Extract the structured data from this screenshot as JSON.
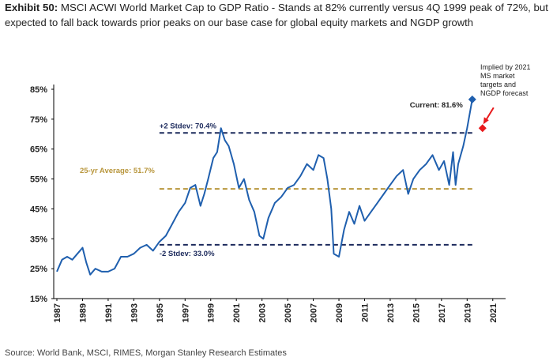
{
  "chart_data": {
    "type": "line",
    "exhibit": "Exhibit 50:",
    "title": [
      "MSCI ACWI World Market Cap to GDP Ratio - Stands at 82% currently versus 4Q 1999 peak of 72%, but",
      "expected to fall back towards prior peaks on our base case for global equity markets and NGDP growth"
    ],
    "source": "Source: World Bank, MSCI, RIMES, Morgan Stanley Research Estimates",
    "xlim": [
      1987,
      2022
    ],
    "ylim": [
      15,
      85
    ],
    "xticks": [
      1987,
      1989,
      1991,
      1993,
      1995,
      1997,
      1999,
      2001,
      2003,
      2005,
      2007,
      2009,
      2011,
      2013,
      2015,
      2017,
      2019,
      2021
    ],
    "yticks": [
      {
        "value": 15,
        "label": "15%"
      },
      {
        "value": 25,
        "label": "25%"
      },
      {
        "value": 35,
        "label": "35%"
      },
      {
        "value": 45,
        "label": "45%"
      },
      {
        "value": 55,
        "label": "55%"
      },
      {
        "value": 65,
        "label": "65%"
      },
      {
        "value": 75,
        "label": "75%"
      },
      {
        "value": 85,
        "label": "85%"
      }
    ],
    "series": [
      {
        "color": "#1f5fae",
        "x": [
          1987,
          1987.4,
          1987.8,
          1988.2,
          1988.6,
          1989.0,
          1989.3,
          1989.6,
          1990.0,
          1990.5,
          1991.0,
          1991.5,
          1992.0,
          1992.5,
          1993.0,
          1993.5,
          1994.0,
          1994.5,
          1995.0,
          1995.5,
          1996.0,
          1996.5,
          1997.0,
          1997.4,
          1997.8,
          1998.2,
          1998.5,
          1998.8,
          1999.2,
          1999.5,
          1999.8,
          2000.1,
          2000.4,
          2000.8,
          2001.2,
          2001.6,
          2002.0,
          2002.4,
          2002.8,
          2003.1,
          2003.5,
          2004.0,
          2004.5,
          2005.0,
          2005.5,
          2006.0,
          2006.5,
          2007.0,
          2007.4,
          2007.8,
          2008.1,
          2008.4,
          2008.6,
          2009.0,
          2009.4,
          2009.8,
          2010.2,
          2010.6,
          2011.0,
          2011.5,
          2012.0,
          2012.5,
          2013.0,
          2013.5,
          2014.0,
          2014.4,
          2014.8,
          2015.3,
          2015.8,
          2016.3,
          2016.8,
          2017.2,
          2017.6,
          2017.9,
          2018.1,
          2018.3,
          2018.7,
          2019.0,
          2019.4
        ],
        "values": [
          24,
          28,
          29,
          28,
          30,
          32,
          27,
          23,
          25,
          24,
          24,
          25,
          29,
          29,
          30,
          32,
          33,
          31,
          34,
          36,
          40,
          44,
          47,
          52,
          53,
          46,
          50,
          55,
          62,
          64,
          72,
          68,
          66,
          60,
          52,
          55,
          48,
          44,
          36,
          35,
          42,
          47,
          49,
          52,
          53,
          56,
          60,
          58,
          63,
          62,
          55,
          45,
          30,
          29,
          38,
          44,
          40,
          46,
          41,
          44,
          47,
          50,
          53,
          56,
          58,
          50,
          55,
          58,
          60,
          63,
          58,
          61,
          53,
          64,
          53,
          60,
          66,
          72,
          81.6
        ]
      }
    ],
    "reference_lines": [
      {
        "label": "+2 Stdev: 70.4%",
        "value": 70.4,
        "color": "#1c2a5c",
        "x_range": [
          1995,
          2019.4
        ]
      },
      {
        "label": "25-yr Average: 51.7%",
        "value": 51.7,
        "color": "#b8963c",
        "x_range": [
          1995,
          2019.4
        ]
      },
      {
        "label": "-2 Stdev: 33.0%",
        "value": 33.0,
        "color": "#1c2a5c",
        "x_range": [
          1995,
          2019.4
        ]
      }
    ],
    "current": {
      "label": "Current: 81.6%",
      "x": 2019.4,
      "value": 81.6,
      "color": "#1f5fae"
    },
    "forecast": {
      "label": [
        "Implied by 2021",
        "MS market",
        "targets and",
        "NGDP forecast"
      ],
      "x": 2020.2,
      "value": 72,
      "color": "#e8191b"
    }
  }
}
